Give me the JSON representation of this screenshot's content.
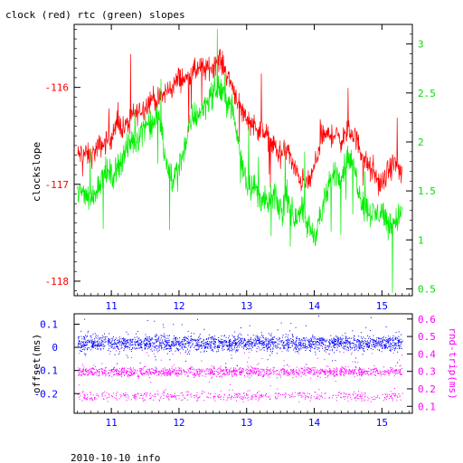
{
  "title": "clock (red) rtc (green) slopes",
  "footer": "2010-10-10 info",
  "colors": {
    "clock": "#ff0000",
    "rtc": "#00ee00",
    "offset": "#0000ff",
    "rndtrip": "#ff00ff",
    "axis_left_top": "#ff0000",
    "axis_right_top": "#00dd00",
    "axis_left_bottom": "#0000ff",
    "axis_right_bottom": "#ff00ff",
    "x_ticks": "#0000ff"
  },
  "chart_data": [
    {
      "type": "line",
      "ylabel": "clockslope",
      "xlim": [
        10.45,
        15.45
      ],
      "ylim": [
        -118.15,
        -115.35
      ],
      "y2lim": [
        0.43,
        3.2
      ],
      "grid": false,
      "x_ticks": [
        "11",
        "12",
        "13",
        "14",
        "15"
      ],
      "y_ticks": [
        "-116",
        "-117",
        "-118"
      ],
      "y2_ticks": [
        "0.5",
        "1",
        "1.5",
        "2",
        "2.5",
        "3"
      ],
      "series": [
        {
          "name": "clock",
          "axis": "left",
          "x": [
            10.5,
            10.6,
            10.7,
            10.8,
            10.9,
            11.0,
            11.1,
            11.2,
            11.3,
            11.4,
            11.5,
            11.6,
            11.7,
            11.8,
            11.9,
            12.0,
            12.1,
            12.2,
            12.3,
            12.4,
            12.5,
            12.6,
            12.7,
            12.8,
            12.9,
            13.0,
            13.1,
            13.2,
            13.3,
            13.4,
            13.5,
            13.6,
            13.7,
            13.8,
            13.9,
            14.0,
            14.1,
            14.2,
            14.3,
            14.4,
            14.5,
            14.6,
            14.7,
            14.8,
            14.9,
            15.0,
            15.1,
            15.2,
            15.3
          ],
          "values": [
            -116.7,
            -116.68,
            -116.72,
            -116.62,
            -116.58,
            -116.5,
            -116.38,
            -116.42,
            -116.3,
            -116.25,
            -116.2,
            -116.1,
            -116.15,
            -116.05,
            -116.0,
            -115.9,
            -115.92,
            -115.85,
            -115.8,
            -115.82,
            -115.78,
            -115.7,
            -115.85,
            -116.0,
            -116.2,
            -116.32,
            -116.38,
            -116.45,
            -116.5,
            -116.6,
            -116.72,
            -116.62,
            -116.85,
            -116.95,
            -117.0,
            -116.85,
            -116.5,
            -116.5,
            -116.48,
            -116.55,
            -116.45,
            -116.5,
            -116.68,
            -116.82,
            -116.92,
            -117.02,
            -116.85,
            -116.78,
            -116.9
          ]
        },
        {
          "name": "rtc",
          "axis": "right",
          "x": [
            10.5,
            10.6,
            10.7,
            10.8,
            10.9,
            11.0,
            11.1,
            11.2,
            11.3,
            11.4,
            11.5,
            11.6,
            11.7,
            11.8,
            11.9,
            12.0,
            12.1,
            12.2,
            12.3,
            12.4,
            12.5,
            12.6,
            12.7,
            12.8,
            12.9,
            13.0,
            13.1,
            13.2,
            13.3,
            13.4,
            13.5,
            13.6,
            13.7,
            13.8,
            13.9,
            14.0,
            14.1,
            14.2,
            14.3,
            14.4,
            14.5,
            14.6,
            14.7,
            14.8,
            14.9,
            15.0,
            15.1,
            15.2,
            15.3
          ],
          "values": [
            1.45,
            1.5,
            1.4,
            1.55,
            1.7,
            1.65,
            1.75,
            1.9,
            2.0,
            2.05,
            2.2,
            2.15,
            2.3,
            1.8,
            1.6,
            1.75,
            2.0,
            2.25,
            2.3,
            2.4,
            2.5,
            2.55,
            2.45,
            2.3,
            1.9,
            1.6,
            1.55,
            1.45,
            1.35,
            1.45,
            1.3,
            1.45,
            1.2,
            1.35,
            1.15,
            1.05,
            1.25,
            1.5,
            1.7,
            1.65,
            1.85,
            1.7,
            1.4,
            1.3,
            1.25,
            1.3,
            1.15,
            1.2,
            1.3
          ]
        }
      ]
    },
    {
      "type": "scatter",
      "ylabel": "offset(ms)",
      "y2label": "rnd-trip(ms)",
      "xlim": [
        10.45,
        15.45
      ],
      "ylim": [
        -0.285,
        0.145
      ],
      "y2lim": [
        0.06,
        0.63
      ],
      "grid": false,
      "x_ticks": [
        "11",
        "12",
        "13",
        "14",
        "15"
      ],
      "y_ticks": [
        "0.1",
        "0",
        "-0.1",
        "-0.2"
      ],
      "y2_ticks": [
        "0.6",
        "0.5",
        "0.4",
        "0.3",
        "0.2",
        "0.1"
      ],
      "series": [
        {
          "name": "offset",
          "axis": "left",
          "x_range": [
            10.5,
            15.3
          ],
          "center": 0.02,
          "spread": 0.05
        },
        {
          "name": "rnd-trip",
          "axis": "right",
          "x_range": [
            10.5,
            15.3
          ],
          "bands": [
            0.3,
            0.16
          ],
          "spread": 0.04
        }
      ]
    }
  ]
}
